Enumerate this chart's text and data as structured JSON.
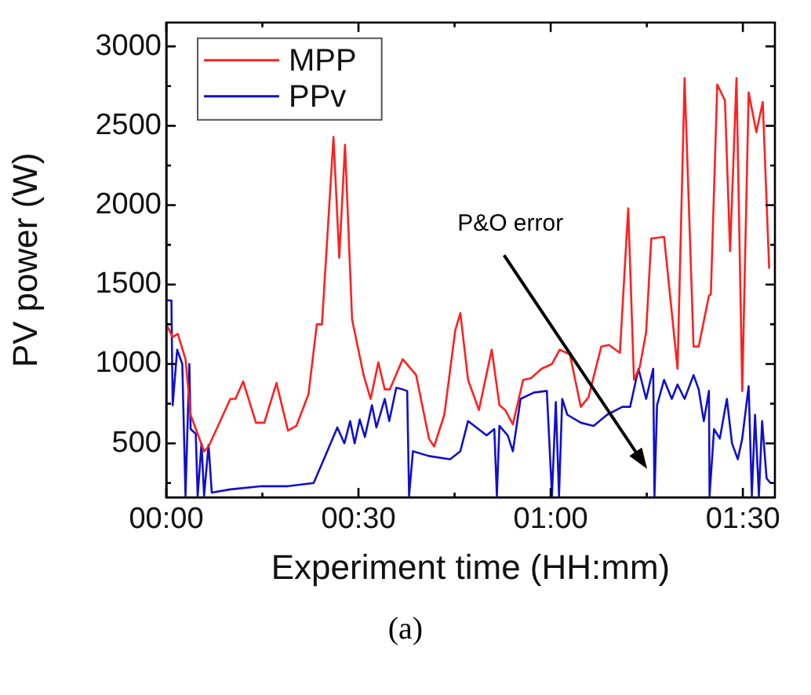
{
  "chart_data": {
    "type": "line",
    "xlabel": "Experiment time (HH:mm)",
    "ylabel": "PV power (W)",
    "xlim": [
      0,
      95
    ],
    "xticks": [
      {
        "value": 0,
        "label": "00:00"
      },
      {
        "value": 15,
        "label": null
      },
      {
        "value": 30,
        "label": "00:30"
      },
      {
        "value": 45,
        "label": null
      },
      {
        "value": 60,
        "label": "01:00"
      },
      {
        "value": 75,
        "label": null
      },
      {
        "value": 90,
        "label": "01:30"
      }
    ],
    "ylim": [
      160,
      3150
    ],
    "yticks": [
      {
        "value": 250,
        "label": null
      },
      500,
      {
        "value": 750,
        "label": null
      },
      1000,
      {
        "value": 1250,
        "label": null
      },
      1500,
      {
        "value": 1750,
        "label": null
      },
      2000,
      {
        "value": 2250,
        "label": null
      },
      2500,
      {
        "value": 2750,
        "label": null
      },
      3000
    ],
    "grid": false,
    "legend": "top left",
    "marker": "none",
    "line_style": "solid",
    "series": [
      {
        "name": "MPP",
        "color": "#ff2020",
        "x": [
          0,
          1,
          1.8,
          3,
          3.8,
          5.9,
          6.6,
          10,
          10.8,
          12,
          14,
          15.3,
          17.2,
          19,
          20.3,
          22.2,
          23.5,
          24.3,
          26.1,
          27,
          27.9,
          29,
          30.8,
          31.9,
          33.1,
          34.1,
          34.9,
          36.9,
          39,
          41,
          41.8,
          43.4,
          45.1,
          45.9,
          47.1,
          48.8,
          50.8,
          52,
          52.9,
          54.1,
          55.7,
          56.9,
          58.6,
          60.2,
          61.4,
          63,
          64.7,
          65.9,
          67.9,
          69.1,
          70.8,
          72.1,
          73,
          73.9,
          74.9,
          75.7,
          77.7,
          79.8,
          80.9,
          82.3,
          83.1,
          84.7,
          85,
          86,
          87.2,
          88,
          89,
          89.9,
          90.9,
          92.1,
          93.1,
          94.1
        ],
        "values": [
          1250,
          1170,
          1190,
          1030,
          680,
          450,
          480,
          780,
          780,
          890,
          630,
          630,
          880,
          580,
          610,
          810,
          1250,
          1250,
          2430,
          1670,
          2380,
          1280,
          930,
          780,
          1010,
          840,
          840,
          1030,
          930,
          530,
          480,
          680,
          1210,
          1320,
          900,
          710,
          1090,
          740,
          710,
          620,
          900,
          910,
          970,
          1000,
          1090,
          1060,
          730,
          790,
          1110,
          1120,
          1070,
          1980,
          900,
          980,
          1200,
          1790,
          1800,
          970,
          2800,
          1110,
          1110,
          1430,
          1440,
          2760,
          2660,
          1710,
          2800,
          830,
          2710,
          2460,
          2650,
          1600
        ]
      },
      {
        "name": "PPv",
        "color": "#1010cc",
        "x": [
          0,
          0.8,
          1,
          1.7,
          2.5,
          3,
          3.6,
          3.8,
          4.6,
          4.9,
          5.5,
          5.9,
          6.6,
          7.1,
          10,
          14.9,
          19,
          23,
          24.7,
          26.7,
          27.8,
          28.7,
          29.4,
          30.2,
          31,
          32.1,
          32.8,
          34.1,
          34.8,
          35.9,
          36.9,
          37.6,
          37.9,
          38.5,
          41,
          44.3,
          45.9,
          47.1,
          50,
          51.2,
          51.6,
          52,
          53.3,
          54.1,
          55.3,
          57.4,
          59.4,
          60.2,
          60.8,
          61.3,
          61.8,
          62.6,
          64.7,
          66.7,
          68.8,
          71.2,
          72.4,
          73.7,
          74.9,
          76,
          76.2,
          76.6,
          77.7,
          78.9,
          79.8,
          80.9,
          82.3,
          83.1,
          83.9,
          84.7,
          84.8,
          85.5,
          86.4,
          87.5,
          88.3,
          89.2,
          89.9,
          90.9,
          91.4,
          91.9,
          92.5,
          93,
          93.7,
          94.3
        ],
        "values": [
          1400,
          1400,
          740,
          1090,
          1000,
          170,
          1000,
          590,
          560,
          170,
          500,
          170,
          490,
          190,
          210,
          230,
          230,
          250,
          410,
          600,
          500,
          640,
          500,
          650,
          540,
          740,
          600,
          780,
          640,
          850,
          840,
          830,
          170,
          450,
          420,
          400,
          450,
          640,
          550,
          590,
          170,
          610,
          550,
          450,
          780,
          820,
          830,
          170,
          760,
          170,
          780,
          680,
          630,
          610,
          680,
          730,
          730,
          970,
          780,
          970,
          170,
          740,
          900,
          780,
          870,
          780,
          930,
          840,
          640,
          830,
          170,
          590,
          530,
          780,
          500,
          400,
          530,
          860,
          170,
          680,
          170,
          640,
          280,
          250
        ]
      }
    ],
    "annotations": [
      "P&O error",
      "(a)"
    ]
  }
}
